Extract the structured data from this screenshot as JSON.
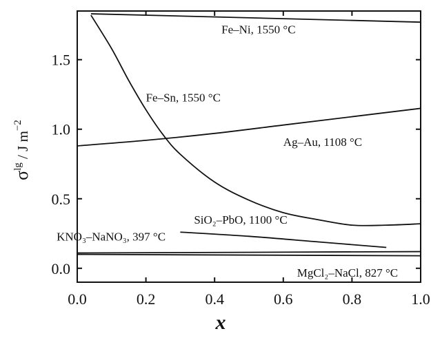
{
  "chart_data": {
    "type": "line",
    "xlabel": "x",
    "ylabel_main": "σ",
    "ylabel_sup": "lg",
    "ylabel_unit": " / J m",
    "ylabel_unit_sup": "−2",
    "xlim": [
      0.0,
      1.0
    ],
    "ylim": [
      -0.1,
      1.85
    ],
    "xticks": [
      0.0,
      0.2,
      0.4,
      0.6,
      0.8,
      1.0
    ],
    "xtick_labels": [
      "0.0",
      "0.2",
      "0.4",
      "0.6",
      "0.8",
      "1.0"
    ],
    "yticks": [
      0.0,
      0.5,
      1.0,
      1.5
    ],
    "ytick_labels": [
      "0.0",
      "0.5",
      "1.0",
      "1.5"
    ],
    "series": [
      {
        "name": "Fe–Ni, 1550 °C",
        "x": [
          0.04,
          1.0
        ],
        "y": [
          1.83,
          1.77
        ],
        "label_anchor": [
          0.42,
          1.69
        ]
      },
      {
        "name": "Fe–Sn, 1550 °C",
        "x": [
          0.04,
          0.1,
          0.15,
          0.2,
          0.25,
          0.3,
          0.4,
          0.5,
          0.6,
          0.7,
          0.8,
          0.9,
          1.0
        ],
        "y": [
          1.82,
          1.58,
          1.35,
          1.14,
          0.96,
          0.82,
          0.62,
          0.49,
          0.4,
          0.35,
          0.31,
          0.31,
          0.32
        ],
        "label_anchor": [
          0.2,
          1.2
        ]
      },
      {
        "name": "Ag–Au, 1108 °C",
        "x": [
          0.0,
          0.2,
          0.4,
          0.6,
          0.8,
          1.0
        ],
        "y": [
          0.88,
          0.92,
          0.97,
          1.03,
          1.09,
          1.15
        ],
        "label_anchor": [
          0.6,
          0.88
        ]
      },
      {
        "name": "SiO₂–PbO, 1100 °C",
        "x": [
          0.3,
          0.5,
          0.7,
          0.9
        ],
        "y": [
          0.26,
          0.23,
          0.19,
          0.15
        ],
        "label_anchor": [
          0.34,
          0.32
        ]
      },
      {
        "name": "KNO₃–NaNO₃, 397 °C",
        "x": [
          0.0,
          1.0
        ],
        "y": [
          0.11,
          0.12
        ],
        "label_anchor": [
          -0.06,
          0.2
        ]
      },
      {
        "name": "MgCl₂–NaCl, 827 °C",
        "x": [
          0.0,
          1.0
        ],
        "y": [
          0.1,
          0.09
        ],
        "label_anchor": [
          0.64,
          -0.06
        ]
      }
    ]
  }
}
